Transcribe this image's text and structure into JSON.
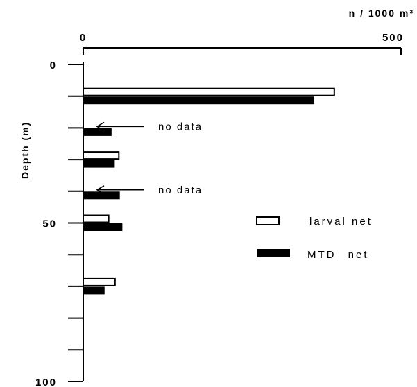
{
  "chart_data": {
    "type": "bar",
    "orientation": "horizontal",
    "title": "",
    "xlabel": "n / 1000 m³",
    "ylabel": "Depth (m)",
    "xlim": [
      0,
      500
    ],
    "ylim": [
      0,
      100
    ],
    "x_ticks": [
      0,
      500
    ],
    "x_tick_labels": [
      "0",
      "500"
    ],
    "y_ticks": [
      0,
      10,
      20,
      30,
      40,
      50,
      60,
      70,
      80,
      90,
      100
    ],
    "y_tick_labels": [
      "0",
      "",
      "",
      "",
      "",
      "50",
      "",
      "",
      "",
      "",
      "100"
    ],
    "grid": false,
    "legend_position": "right",
    "depths": [
      10,
      20,
      30,
      40,
      50,
      60,
      70
    ],
    "series": [
      {
        "name": "larval net",
        "style": "open",
        "values": [
          395,
          null,
          56,
          null,
          40,
          null,
          50
        ]
      },
      {
        "name": "MTD net",
        "style": "filled",
        "values": [
          363,
          44,
          49,
          57,
          61,
          null,
          33
        ]
      }
    ],
    "annotations": [
      {
        "text": "no data",
        "depth": 20
      },
      {
        "text": "no data",
        "depth": 40
      }
    ]
  }
}
